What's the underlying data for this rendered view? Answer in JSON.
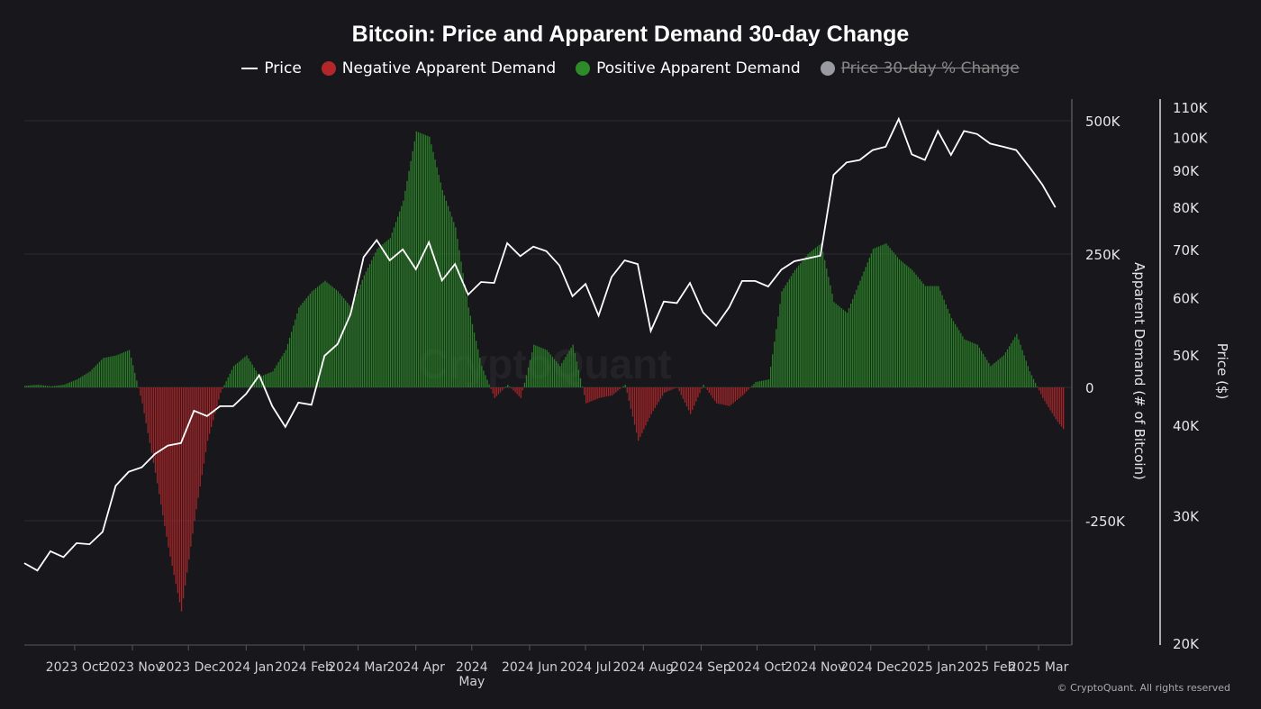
{
  "chart_data": {
    "type": "bar+line",
    "title": "Bitcoin: Price and Apparent Demand 30-day Change",
    "legend": [
      {
        "name": "Price",
        "color": "#ffffff",
        "symbol": "line",
        "active": true
      },
      {
        "name": "Negative Apparent Demand",
        "color": "#b3272a",
        "symbol": "dot",
        "active": true
      },
      {
        "name": "Positive Apparent Demand",
        "color": "#2e8b2a",
        "symbol": "dot",
        "active": true
      },
      {
        "name": "Price 30-day % Change",
        "color": "#9a9aa2",
        "symbol": "dot",
        "active": false
      }
    ],
    "legend_position": "top",
    "x_ticks": [
      "2023 Oct",
      "2023 Nov",
      "2023 Dec",
      "2024 Jan",
      "2024 Feb",
      "2024 Mar",
      "2024 Apr",
      "2024 May",
      "2024 Jun",
      "2024 Jul",
      "2024 Aug",
      "2024 Sep",
      "2024 Oct",
      "2024 Nov",
      "2024 Dec",
      "2025 Jan",
      "2025 Feb",
      "2025 Mar"
    ],
    "x_tick_dates": [
      "2023-10-01",
      "2023-11-01",
      "2023-12-01",
      "2024-01-01",
      "2024-02-01",
      "2024-03-01",
      "2024-04-01",
      "2024-05-01",
      "2024-06-01",
      "2024-07-01",
      "2024-08-01",
      "2024-09-01",
      "2024-10-01",
      "2024-11-01",
      "2024-12-01",
      "2025-01-01",
      "2025-02-01",
      "2025-03-01"
    ],
    "y_left": {
      "label": "Apparent Demand (# of Bitcoin)",
      "ticks": [
        "500K",
        "250K",
        "0",
        "-250K"
      ],
      "tick_values": [
        500000,
        250000,
        0,
        -250000
      ],
      "range": [
        -485000,
        500000
      ]
    },
    "y_right": {
      "label": "Price ($)",
      "scale": "log",
      "ticks": [
        "110K",
        "100K",
        "90K",
        "80K",
        "70K",
        "60K",
        "50K",
        "40K",
        "30K",
        "20K"
      ],
      "tick_values": [
        110000,
        100000,
        90000,
        80000,
        70000,
        60000,
        50000,
        40000,
        30000,
        20000
      ],
      "range": [
        20000,
        110000
      ]
    },
    "grid": true,
    "dates": [
      "2023-09-04",
      "2023-09-11",
      "2023-09-18",
      "2023-09-25",
      "2023-10-02",
      "2023-10-09",
      "2023-10-16",
      "2023-10-23",
      "2023-10-30",
      "2023-11-06",
      "2023-11-13",
      "2023-11-20",
      "2023-11-27",
      "2023-12-04",
      "2023-12-11",
      "2023-12-18",
      "2023-12-25",
      "2024-01-01",
      "2024-01-08",
      "2024-01-15",
      "2024-01-22",
      "2024-01-29",
      "2024-02-05",
      "2024-02-12",
      "2024-02-19",
      "2024-02-26",
      "2024-03-04",
      "2024-03-11",
      "2024-03-18",
      "2024-03-25",
      "2024-04-01",
      "2024-04-08",
      "2024-04-15",
      "2024-04-22",
      "2024-04-29",
      "2024-05-06",
      "2024-05-13",
      "2024-05-20",
      "2024-05-27",
      "2024-06-03",
      "2024-06-10",
      "2024-06-17",
      "2024-06-24",
      "2024-07-01",
      "2024-07-08",
      "2024-07-15",
      "2024-07-22",
      "2024-07-29",
      "2024-08-05",
      "2024-08-12",
      "2024-08-19",
      "2024-08-26",
      "2024-09-02",
      "2024-09-09",
      "2024-09-16",
      "2024-09-23",
      "2024-09-30",
      "2024-10-07",
      "2024-10-14",
      "2024-10-21",
      "2024-10-28",
      "2024-11-04",
      "2024-11-11",
      "2024-11-18",
      "2024-11-25",
      "2024-12-02",
      "2024-12-09",
      "2024-12-16",
      "2024-12-23",
      "2024-12-30",
      "2025-01-06",
      "2025-01-13",
      "2025-01-20",
      "2025-01-27",
      "2025-02-03",
      "2025-02-10",
      "2025-02-17",
      "2025-02-24",
      "2025-03-03",
      "2025-03-10"
    ],
    "series": [
      {
        "name": "Price",
        "type": "line",
        "axis": "right",
        "unit": "USD",
        "values": [
          25800,
          25200,
          26800,
          26300,
          27500,
          27400,
          28500,
          33000,
          34500,
          35000,
          36500,
          37500,
          37800,
          41900,
          41200,
          42500,
          42500,
          44200,
          46900,
          42500,
          39800,
          43000,
          42700,
          49900,
          51800,
          57000,
          68300,
          72100,
          67600,
          70000,
          65700,
          71600,
          63400,
          66800,
          60600,
          63100,
          62900,
          71400,
          68500,
          70600,
          69600,
          66500,
          60300,
          62700,
          56700,
          64100,
          67600,
          66800,
          54000,
          59300,
          59000,
          62900,
          57300,
          54900,
          58200,
          63300,
          63300,
          62200,
          65600,
          67400,
          68000,
          68600,
          88700,
          92300,
          93000,
          96000,
          97000,
          106000,
          94700,
          93000,
          102000,
          94500,
          102000,
          101000,
          98000,
          97000,
          96000,
          91000,
          86000,
          80000
        ]
      },
      {
        "name": "Apparent Demand",
        "type": "bar",
        "axis": "left",
        "unit": "BTC",
        "values": [
          3000,
          5000,
          2000,
          5000,
          15000,
          30000,
          55000,
          60000,
          70000,
          -30000,
          -160000,
          -300000,
          -420000,
          -250000,
          -100000,
          -10000,
          40000,
          60000,
          20000,
          30000,
          70000,
          150000,
          180000,
          200000,
          180000,
          150000,
          210000,
          260000,
          280000,
          350000,
          480000,
          470000,
          370000,
          300000,
          150000,
          40000,
          -20000,
          5000,
          -20000,
          80000,
          70000,
          40000,
          80000,
          -30000,
          -20000,
          -15000,
          5000,
          -100000,
          -50000,
          -10000,
          0,
          -50000,
          5000,
          -30000,
          -35000,
          -15000,
          10000,
          15000,
          180000,
          220000,
          250000,
          270000,
          160000,
          140000,
          200000,
          260000,
          270000,
          240000,
          220000,
          190000,
          190000,
          130000,
          90000,
          80000,
          40000,
          60000,
          100000,
          30000,
          -20000,
          -60000
        ]
      }
    ]
  },
  "watermark": "CryptoQuant",
  "copyright": "© CryptoQuant. All rights reserved"
}
